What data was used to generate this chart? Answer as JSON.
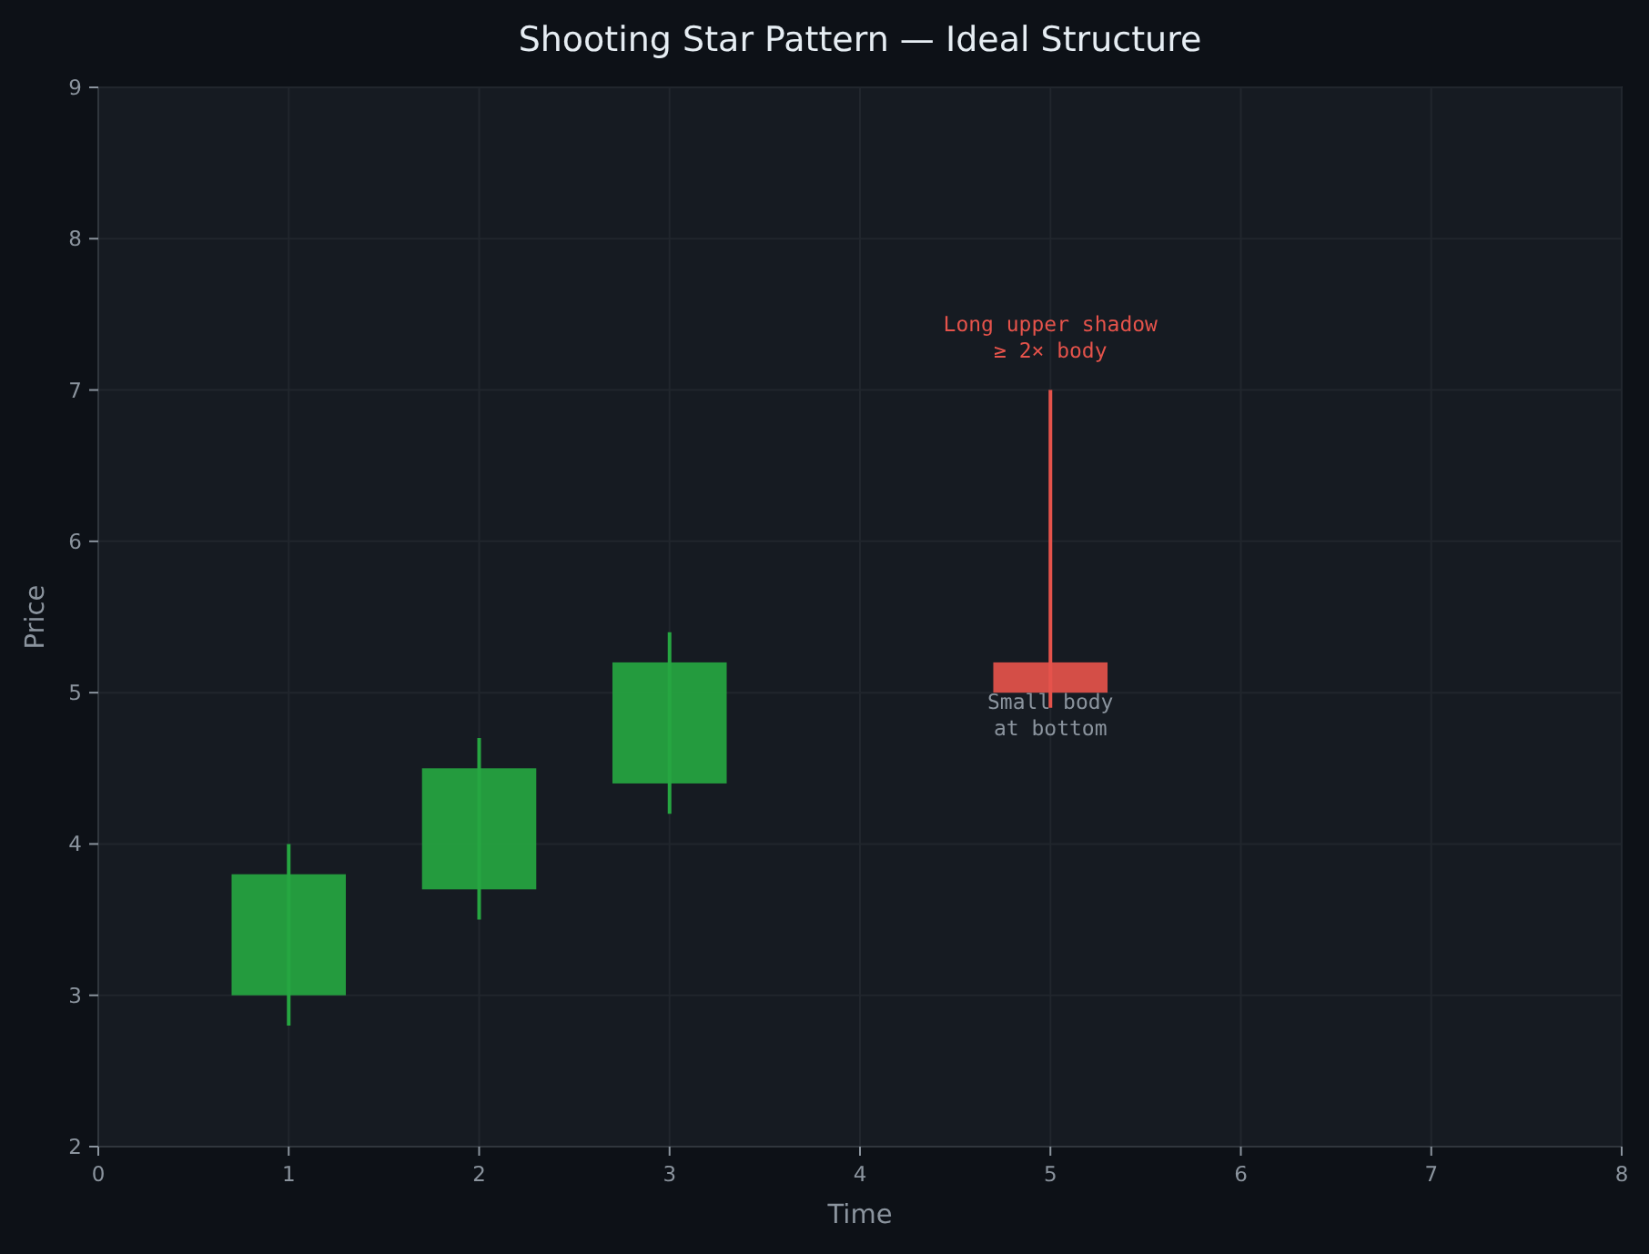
{
  "chart_data": {
    "type": "candlestick",
    "title": "Shooting Star Pattern — Ideal Structure",
    "xlabel": "Time",
    "ylabel": "Price",
    "x": [
      1,
      2,
      3,
      5
    ],
    "ohlc": [
      [
        3.0,
        4.0,
        2.8,
        3.8
      ],
      [
        3.7,
        4.7,
        3.5,
        4.5
      ],
      [
        4.4,
        5.4,
        4.2,
        5.2
      ],
      [
        5.2,
        7.0,
        4.9,
        5.0
      ]
    ],
    "colors": [
      "#26a641",
      "#26a641",
      "#26a641",
      "#e5534b"
    ],
    "xlim": [
      0,
      8
    ],
    "xticks": [
      0,
      1,
      2,
      3,
      4,
      5,
      6,
      7,
      8
    ],
    "ylim": [
      2,
      9
    ],
    "yticks": [
      2,
      3,
      4,
      5,
      6,
      7,
      8,
      9
    ],
    "grid": true,
    "annotations": [
      {
        "text": "Long upper shadow\n≥ 2× body",
        "x": 5,
        "y": 7.0
      },
      {
        "text": "Small body\nat bottom",
        "x": 5,
        "y": 4.9
      }
    ]
  }
}
